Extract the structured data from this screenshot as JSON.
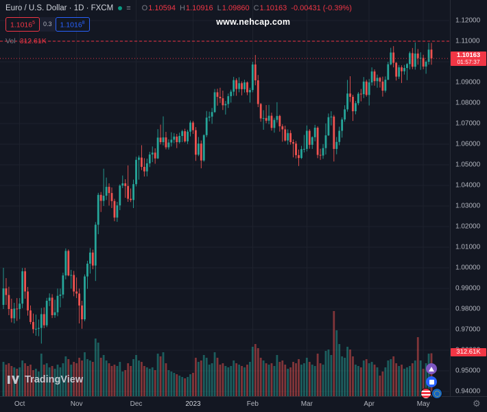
{
  "header": {
    "symbol_title": "Euro / U.S. Dollar · 1D · FXCM",
    "ohlc": {
      "o_label": "O",
      "o": "1.10594",
      "h_label": "H",
      "h": "1.10916",
      "l_label": "L",
      "l": "1.09860",
      "c_label": "C",
      "c": "1.10163",
      "change": "-0.00431 (-0.39%)"
    },
    "sell": {
      "value": "1.1016",
      "sup": "5"
    },
    "spread": "0.3",
    "buy": {
      "value": "1.1016",
      "sup": "8"
    },
    "vol_label": "Vol",
    "vol_value": "312.61K",
    "menu_icon_glyph": "≡"
  },
  "watermark": "www.nehcap.com",
  "logo_text": "TradingView",
  "price_label": {
    "price": "1.10163",
    "countdown": "01:57:37"
  },
  "volume_label": "312.61K",
  "gear_glyph": "⚙",
  "colors": {
    "background": "#131722",
    "grid": "#1e222d",
    "axis_border": "#2a2e39",
    "green": "#26a69a",
    "red": "#ef5350",
    "label_red": "#f23645",
    "blue": "#2962ff",
    "status_green": "#089981",
    "text": "#b2b5be",
    "text_bright": "#d1d4dc",
    "muted": "#787b86"
  },
  "chart_data": {
    "type": "candlestick",
    "symbol": "Euro / U.S. Dollar",
    "exchange": "FXCM",
    "interval": "1D",
    "ylim": [
      0.94,
      1.12
    ],
    "grid": true,
    "alert_price": 1.11,
    "last_close": 1.10163,
    "volume_unit": "K",
    "last": {
      "open": "1.10594",
      "high": "1.10916",
      "low": "1.09860",
      "close": "1.10163",
      "change": "-0.00431",
      "change_pct": "-0.39%",
      "volume": "312.61K"
    },
    "y_ticks": [
      "1.12000",
      "1.11000",
      "1.10000",
      "1.09000",
      "1.08000",
      "1.07000",
      "1.06000",
      "1.05000",
      "1.04000",
      "1.03000",
      "1.02000",
      "1.01000",
      "1.00000",
      "0.99000",
      "0.98000",
      "0.97000",
      "0.96000",
      "0.95000",
      "0.94000"
    ],
    "x_ticks": [
      {
        "label": "Oct",
        "i": 6
      },
      {
        "label": "Nov",
        "i": 27
      },
      {
        "label": "Dec",
        "i": 49
      },
      {
        "label": "2023",
        "i": 70,
        "year": true
      },
      {
        "label": "Feb",
        "i": 92
      },
      {
        "label": "Mar",
        "i": 112
      },
      {
        "label": "Apr",
        "i": 135
      },
      {
        "label": "May",
        "i": 155
      }
    ],
    "candles_format": [
      "open",
      "high",
      "low",
      "close",
      "volume_k"
    ],
    "candles": [
      [
        0.982,
        1.0,
        0.98,
        0.99,
        250
      ],
      [
        0.99,
        0.995,
        0.982,
        0.9868,
        230
      ],
      [
        0.9868,
        0.9908,
        0.977,
        0.98,
        240
      ],
      [
        0.98,
        0.985,
        0.9735,
        0.9755,
        220
      ],
      [
        0.9755,
        0.983,
        0.973,
        0.9802,
        210
      ],
      [
        0.9802,
        0.9853,
        0.9742,
        0.98,
        200
      ],
      [
        0.98,
        0.9853,
        0.9751,
        0.9826,
        210
      ],
      [
        0.9826,
        0.9999,
        0.9804,
        0.9983,
        260
      ],
      [
        0.9983,
        1.0,
        0.985,
        0.9885,
        240
      ],
      [
        0.9885,
        0.9907,
        0.9768,
        0.9793,
        220
      ],
      [
        0.9793,
        0.9817,
        0.9726,
        0.9737,
        230
      ],
      [
        0.9737,
        0.9778,
        0.9682,
        0.9702,
        190
      ],
      [
        0.9702,
        0.9773,
        0.967,
        0.9704,
        200
      ],
      [
        0.9704,
        0.9749,
        0.9668,
        0.9708,
        180
      ],
      [
        0.9708,
        0.9805,
        0.9632,
        0.9775,
        310
      ],
      [
        0.9775,
        0.9808,
        0.9707,
        0.9721,
        230
      ],
      [
        0.9721,
        0.9854,
        0.9712,
        0.984,
        240
      ],
      [
        0.984,
        0.9876,
        0.9814,
        0.9855,
        210
      ],
      [
        0.9855,
        0.9872,
        0.9756,
        0.977,
        220
      ],
      [
        0.977,
        0.9845,
        0.9757,
        0.9784,
        200
      ],
      [
        0.9784,
        0.9899,
        0.9765,
        0.9864,
        230
      ],
      [
        0.9864,
        0.9899,
        0.9808,
        0.987,
        210
      ],
      [
        0.987,
        0.9976,
        0.9852,
        0.9963,
        240
      ],
      [
        0.9963,
        1.0094,
        0.9944,
        1.0082,
        290
      ],
      [
        1.0082,
        1.0089,
        0.9959,
        0.9963,
        270
      ],
      [
        0.9963,
        0.999,
        0.9899,
        0.9965,
        230
      ],
      [
        0.9965,
        0.9985,
        0.9862,
        0.9885,
        250
      ],
      [
        0.9885,
        0.9953,
        0.9853,
        0.9875,
        240
      ],
      [
        0.9875,
        0.9899,
        0.973,
        0.9817,
        280
      ],
      [
        0.9817,
        0.984,
        0.9704,
        0.975,
        260
      ],
      [
        0.975,
        0.9968,
        0.9741,
        0.9958,
        320
      ],
      [
        0.9958,
        1.0034,
        0.9898,
        1.002,
        270
      ],
      [
        1.002,
        1.0096,
        0.9972,
        1.0074,
        260
      ],
      [
        1.0074,
        1.0088,
        0.9993,
        1.0011,
        250
      ],
      [
        1.0011,
        1.0222,
        0.9936,
        1.0209,
        420
      ],
      [
        1.0209,
        1.0364,
        1.0163,
        1.0354,
        390
      ],
      [
        1.0354,
        1.0368,
        1.0271,
        1.0325,
        280
      ],
      [
        1.0325,
        1.0481,
        1.03,
        1.035,
        300
      ],
      [
        1.035,
        1.0438,
        1.0329,
        1.0393,
        260
      ],
      [
        1.0393,
        1.041,
        1.0302,
        1.0363,
        240
      ],
      [
        1.0363,
        1.039,
        1.029,
        1.0324,
        220
      ],
      [
        1.0324,
        1.0335,
        1.0226,
        1.0244,
        230
      ],
      [
        1.0244,
        1.032,
        1.0223,
        1.0303,
        220
      ],
      [
        1.0303,
        1.0405,
        1.028,
        1.0399,
        250
      ],
      [
        1.0399,
        1.0448,
        1.0387,
        1.041,
        180
      ],
      [
        1.041,
        1.043,
        1.034,
        1.0397,
        190
      ],
      [
        1.0397,
        1.0497,
        1.032,
        1.0335,
        240
      ],
      [
        1.0335,
        1.0385,
        1.0319,
        1.0329,
        220
      ],
      [
        1.0329,
        1.0428,
        1.029,
        1.0406,
        270
      ],
      [
        1.0406,
        1.0539,
        1.0395,
        1.0524,
        300
      ],
      [
        1.0524,
        1.0545,
        1.0428,
        1.0535,
        260
      ],
      [
        1.0535,
        1.0595,
        1.0474,
        1.049,
        250
      ],
      [
        1.049,
        1.0532,
        1.0443,
        1.0468,
        220
      ],
      [
        1.0468,
        1.053,
        1.0444,
        1.0507,
        210
      ],
      [
        1.0507,
        1.0563,
        1.0489,
        1.055,
        200
      ],
      [
        1.055,
        1.0589,
        1.0513,
        1.0559,
        210
      ],
      [
        1.0559,
        1.058,
        1.0505,
        1.0531,
        190
      ],
      [
        1.0531,
        1.0673,
        1.0528,
        1.0632,
        310
      ],
      [
        1.0632,
        1.0695,
        1.0599,
        1.061,
        290
      ],
      [
        1.061,
        1.0735,
        1.0594,
        1.0633,
        320
      ],
      [
        1.0633,
        1.066,
        1.0575,
        1.0585,
        240
      ],
      [
        1.0585,
        1.0624,
        1.0574,
        1.0608,
        190
      ],
      [
        1.0608,
        1.0658,
        1.0589,
        1.0622,
        180
      ],
      [
        1.0622,
        1.0654,
        1.0605,
        1.0637,
        170
      ],
      [
        1.0637,
        1.065,
        1.0581,
        1.061,
        160
      ],
      [
        1.061,
        1.0656,
        1.0603,
        1.064,
        150
      ],
      [
        1.064,
        1.067,
        1.061,
        1.0663,
        140
      ],
      [
        1.0663,
        1.0675,
        1.0608,
        1.0614,
        130
      ],
      [
        1.0614,
        1.067,
        1.0601,
        1.0661,
        140
      ],
      [
        1.0661,
        1.0715,
        1.0638,
        1.0705,
        160
      ],
      [
        1.0705,
        1.0713,
        1.065,
        1.0668,
        170
      ],
      [
        1.0668,
        1.0683,
        1.0519,
        1.0549,
        280
      ],
      [
        1.0549,
        1.0635,
        1.0542,
        1.0603,
        250
      ],
      [
        1.0603,
        1.0618,
        1.0483,
        1.0521,
        260
      ],
      [
        1.0521,
        1.0648,
        1.0515,
        1.0644,
        300
      ],
      [
        1.0644,
        1.0761,
        1.0634,
        1.0729,
        280
      ],
      [
        1.0729,
        1.0758,
        1.0711,
        1.0734,
        230
      ],
      [
        1.0734,
        1.0776,
        1.0699,
        1.0756,
        240
      ],
      [
        1.0756,
        1.0868,
        1.0752,
        1.0852,
        320
      ],
      [
        1.0852,
        1.0869,
        1.0787,
        1.083,
        280
      ],
      [
        1.083,
        1.0874,
        1.0801,
        1.0823,
        230
      ],
      [
        1.0823,
        1.086,
        1.0766,
        1.0789,
        240
      ],
      [
        1.0789,
        1.081,
        1.0744,
        1.0795,
        220
      ],
      [
        1.0795,
        1.0846,
        1.0776,
        1.0833,
        210
      ],
      [
        1.0833,
        1.0865,
        1.0802,
        1.0855,
        220
      ],
      [
        1.0855,
        1.0927,
        1.0835,
        1.0911,
        260
      ],
      [
        1.0911,
        1.092,
        1.0835,
        1.0868,
        240
      ],
      [
        1.0868,
        1.0925,
        1.0852,
        1.0896,
        230
      ],
      [
        1.0896,
        1.0905,
        1.0837,
        1.0867,
        220
      ],
      [
        1.0867,
        1.0913,
        1.0851,
        1.09,
        210
      ],
      [
        1.09,
        1.0905,
        1.0838,
        1.0852,
        230
      ],
      [
        1.0852,
        1.0874,
        1.0802,
        1.0863,
        250
      ],
      [
        1.0863,
        1.1,
        1.0852,
        1.0987,
        360
      ],
      [
        1.0987,
        1.1033,
        1.0886,
        1.091,
        380
      ],
      [
        1.091,
        1.0936,
        1.078,
        1.0795,
        350
      ],
      [
        1.0795,
        1.08,
        1.0709,
        1.0725,
        280
      ],
      [
        1.0725,
        1.0765,
        1.067,
        1.0727,
        260
      ],
      [
        1.0727,
        1.079,
        1.0702,
        1.0714,
        240
      ],
      [
        1.0714,
        1.0791,
        1.0697,
        1.0738,
        230
      ],
      [
        1.0738,
        1.0753,
        1.0666,
        1.0679,
        240
      ],
      [
        1.0679,
        1.0728,
        1.0656,
        1.0718,
        220
      ],
      [
        1.0718,
        1.0804,
        1.0705,
        1.0737,
        300
      ],
      [
        1.0737,
        1.0743,
        1.0661,
        1.0687,
        250
      ],
      [
        1.0687,
        1.0697,
        1.0612,
        1.0672,
        260
      ],
      [
        1.0672,
        1.069,
        1.0613,
        1.0618,
        230
      ],
      [
        1.0618,
        1.0672,
        1.0598,
        1.0654,
        200
      ],
      [
        1.0654,
        1.0668,
        1.0598,
        1.061,
        210
      ],
      [
        1.061,
        1.0623,
        1.0536,
        1.0603,
        250
      ],
      [
        1.0603,
        1.0615,
        1.0531,
        1.0547,
        240
      ],
      [
        1.0547,
        1.0574,
        1.0494,
        1.0533,
        270
      ],
      [
        1.0533,
        1.0592,
        1.0528,
        1.0576,
        230
      ],
      [
        1.0576,
        1.0645,
        1.056,
        1.0577,
        240
      ],
      [
        1.0577,
        1.0691,
        1.0565,
        1.0665,
        280
      ],
      [
        1.0665,
        1.0673,
        1.0578,
        1.0597,
        250
      ],
      [
        1.0597,
        1.0638,
        1.0577,
        1.0634,
        230
      ],
      [
        1.0634,
        1.0694,
        1.0614,
        1.068,
        220
      ],
      [
        1.068,
        1.0687,
        1.0532,
        1.0548,
        310
      ],
      [
        1.0548,
        1.0578,
        1.0524,
        1.0545,
        240
      ],
      [
        1.0545,
        1.0601,
        1.0529,
        1.0581,
        230
      ],
      [
        1.0581,
        1.0701,
        1.055,
        1.0643,
        330
      ],
      [
        1.0643,
        1.0749,
        1.064,
        1.0731,
        340
      ],
      [
        1.0731,
        1.076,
        1.0691,
        1.0734,
        300
      ],
      [
        1.0734,
        1.0742,
        1.0516,
        1.0577,
        620
      ],
      [
        1.0577,
        1.0635,
        1.0551,
        1.0611,
        480
      ],
      [
        1.0611,
        1.0685,
        1.0595,
        1.0665,
        380
      ],
      [
        1.0665,
        1.073,
        1.0632,
        1.072,
        290
      ],
      [
        1.072,
        1.0789,
        1.0709,
        1.0769,
        280
      ],
      [
        1.0769,
        1.0912,
        1.0758,
        1.0846,
        360
      ],
      [
        1.0846,
        1.093,
        1.0805,
        1.083,
        340
      ],
      [
        1.083,
        1.084,
        1.0713,
        1.076,
        290
      ],
      [
        1.076,
        1.081,
        1.0745,
        1.0799,
        230
      ],
      [
        1.0799,
        1.0853,
        1.0789,
        1.0845,
        220
      ],
      [
        1.0845,
        1.0868,
        1.0808,
        1.0843,
        210
      ],
      [
        1.0843,
        1.0926,
        1.0824,
        1.0904,
        260
      ],
      [
        1.0904,
        1.0913,
        1.0831,
        1.0839,
        270
      ],
      [
        1.0839,
        1.0917,
        1.0788,
        1.09,
        240
      ],
      [
        1.09,
        1.0973,
        1.0885,
        1.0953,
        250
      ],
      [
        1.0953,
        1.0963,
        1.0884,
        1.0906,
        230
      ],
      [
        1.0906,
        1.0938,
        1.0874,
        1.0922,
        210
      ],
      [
        1.0922,
        1.0927,
        1.0875,
        1.0904,
        150
      ],
      [
        1.0904,
        1.0928,
        1.0831,
        1.086,
        180
      ],
      [
        1.086,
        1.0929,
        1.0851,
        1.0913,
        210
      ],
      [
        1.0913,
        1.1,
        1.0911,
        1.0988,
        260
      ],
      [
        1.0988,
        1.1068,
        1.0983,
        1.1045,
        270
      ],
      [
        1.1045,
        1.1076,
        1.0973,
        1.0995,
        290
      ],
      [
        1.0995,
        1.0999,
        1.0909,
        1.0928,
        240
      ],
      [
        1.0928,
        1.0984,
        1.0917,
        1.0973,
        220
      ],
      [
        1.0973,
        1.0983,
        1.0897,
        1.0954,
        230
      ],
      [
        1.0954,
        1.0985,
        1.0938,
        1.097,
        200
      ],
      [
        1.097,
        1.0994,
        1.0911,
        1.0989,
        210
      ],
      [
        1.0989,
        1.105,
        1.0963,
        1.1042,
        220
      ],
      [
        1.1042,
        1.1067,
        1.0964,
        1.0976,
        240
      ],
      [
        1.0976,
        1.1094,
        1.0962,
        1.104,
        260
      ],
      [
        1.104,
        1.1062,
        1.0986,
        1.1018,
        430
      ],
      [
        1.1018,
        1.1046,
        1.0961,
        1.1019,
        260
      ],
      [
        1.1019,
        1.1034,
        1.0964,
        1.0977,
        200
      ],
      [
        1.0977,
        1.1007,
        1.0942,
        1.1,
        240
      ],
      [
        1.1,
        1.1092,
        1.0986,
        1.1059,
        310
      ],
      [
        1.10594,
        1.10916,
        1.0986,
        1.10163,
        312.61
      ]
    ]
  }
}
